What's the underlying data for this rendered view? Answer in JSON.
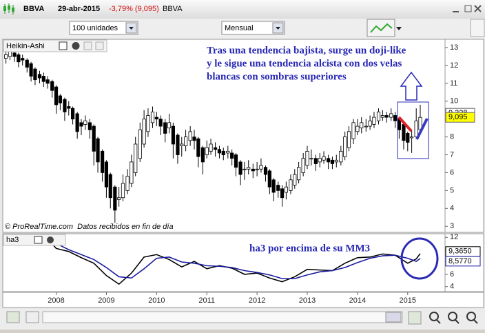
{
  "window": {
    "symbol": "BBVA",
    "date": "29-abr-2015",
    "change": "-3,79% (9,095)",
    "name": "BBVA",
    "quantity": "100 unidades",
    "period": "Mensual"
  },
  "chart_data": [
    {
      "type": "candlestick",
      "title": "Heikin-Ashi",
      "footer": [
        "© ProRealTime.com",
        "Datos recibidos en fin de día"
      ],
      "annotations": [
        "Tras una tendencia bajista, surge un doji-like",
        "y le sigue una tendencia alcista con dos velas",
        "blancas con sombras superiores"
      ],
      "xlim": [
        2006.95,
        2015.73
      ],
      "ylim": [
        2.7,
        13.27
      ],
      "yticks": [
        3,
        4,
        5,
        6,
        7,
        8,
        9,
        10,
        11,
        12,
        13
      ],
      "price_labels": [
        {
          "value": 9.328,
          "label": "9,328",
          "color": "#ffffff"
        },
        {
          "value": 9.095,
          "label": "9,095",
          "color": "#ffff00"
        }
      ],
      "x": [
        2007.0,
        2007.08,
        2007.17,
        2007.25,
        2007.33,
        2007.42,
        2007.5,
        2007.58,
        2007.67,
        2007.75,
        2007.83,
        2007.92,
        2008.0,
        2008.08,
        2008.17,
        2008.25,
        2008.33,
        2008.42,
        2008.5,
        2008.58,
        2008.67,
        2008.75,
        2008.83,
        2008.92,
        2009.0,
        2009.08,
        2009.17,
        2009.25,
        2009.33,
        2009.42,
        2009.5,
        2009.58,
        2009.67,
        2009.75,
        2009.83,
        2009.92,
        2010.0,
        2010.08,
        2010.17,
        2010.25,
        2010.33,
        2010.42,
        2010.5,
        2010.58,
        2010.67,
        2010.75,
        2010.83,
        2010.92,
        2011.0,
        2011.08,
        2011.17,
        2011.25,
        2011.33,
        2011.42,
        2011.5,
        2011.58,
        2011.67,
        2011.75,
        2011.83,
        2011.92,
        2012.0,
        2012.08,
        2012.17,
        2012.25,
        2012.33,
        2012.42,
        2012.5,
        2012.58,
        2012.67,
        2012.75,
        2012.83,
        2012.92,
        2013.0,
        2013.08,
        2013.17,
        2013.25,
        2013.33,
        2013.42,
        2013.5,
        2013.58,
        2013.67,
        2013.75,
        2013.83,
        2013.92,
        2014.0,
        2014.08,
        2014.17,
        2014.25,
        2014.33,
        2014.42,
        2014.5,
        2014.58,
        2014.67,
        2014.75,
        2014.83,
        2014.92,
        2015.0,
        2015.08,
        2015.17,
        2015.25
      ],
      "ohlc": [
        [
          12.4,
          12.9,
          12.1,
          12.6
        ],
        [
          12.5,
          13.1,
          12.3,
          12.9
        ],
        [
          12.7,
          12.9,
          12.2,
          12.5
        ],
        [
          12.6,
          12.7,
          11.9,
          12.2
        ],
        [
          12.4,
          12.6,
          12.0,
          12.3
        ],
        [
          12.3,
          12.4,
          11.6,
          11.9
        ],
        [
          12.1,
          12.2,
          11.1,
          11.4
        ],
        [
          11.8,
          11.9,
          10.9,
          11.2
        ],
        [
          11.5,
          11.7,
          11.0,
          11.3
        ],
        [
          11.4,
          11.6,
          10.8,
          11.1
        ],
        [
          11.2,
          11.4,
          10.7,
          11.0
        ],
        [
          11.1,
          11.2,
          10.2,
          10.6
        ],
        [
          10.8,
          10.9,
          9.3,
          9.8
        ],
        [
          10.3,
          10.4,
          9.5,
          9.9
        ],
        [
          10.1,
          10.2,
          8.9,
          9.4
        ],
        [
          9.7,
          10.0,
          9.2,
          9.6
        ],
        [
          9.6,
          9.7,
          8.7,
          9.0
        ],
        [
          9.3,
          9.4,
          7.9,
          8.3
        ],
        [
          8.8,
          9.0,
          8.1,
          8.6
        ],
        [
          8.7,
          9.2,
          8.4,
          8.9
        ],
        [
          8.8,
          9.0,
          7.9,
          8.4
        ],
        [
          8.6,
          8.7,
          6.4,
          7.2
        ],
        [
          7.9,
          8.0,
          6.0,
          6.6
        ],
        [
          7.2,
          7.3,
          5.5,
          6.0
        ],
        [
          6.6,
          6.7,
          4.6,
          5.2
        ],
        [
          5.9,
          6.0,
          4.0,
          4.6
        ],
        [
          5.2,
          5.3,
          3.2,
          3.9
        ],
        [
          4.5,
          5.2,
          4.1,
          4.6
        ],
        [
          4.6,
          5.9,
          4.4,
          5.4
        ],
        [
          5.0,
          6.2,
          4.8,
          5.8
        ],
        [
          5.4,
          7.0,
          5.2,
          6.6
        ],
        [
          6.0,
          8.0,
          5.8,
          7.6
        ],
        [
          6.8,
          8.8,
          6.6,
          8.4
        ],
        [
          7.6,
          9.5,
          7.4,
          9.0
        ],
        [
          8.3,
          9.6,
          8.0,
          9.2
        ],
        [
          8.8,
          9.7,
          8.5,
          9.4
        ],
        [
          9.1,
          9.4,
          8.6,
          9.0
        ],
        [
          9.0,
          9.2,
          8.1,
          8.6
        ],
        [
          8.8,
          9.0,
          7.7,
          8.2
        ],
        [
          8.5,
          9.3,
          8.2,
          8.8
        ],
        [
          8.6,
          8.8,
          6.8,
          7.6
        ],
        [
          8.1,
          8.2,
          6.5,
          7.0
        ],
        [
          7.5,
          8.0,
          6.9,
          7.6
        ],
        [
          7.5,
          8.4,
          7.2,
          8.0
        ],
        [
          7.8,
          8.6,
          7.5,
          8.3
        ],
        [
          8.0,
          8.4,
          7.3,
          7.8
        ],
        [
          7.9,
          8.0,
          6.3,
          6.9
        ],
        [
          7.4,
          7.5,
          5.9,
          6.6
        ],
        [
          7.0,
          7.8,
          6.8,
          7.4
        ],
        [
          7.2,
          7.9,
          7.0,
          7.6
        ],
        [
          7.4,
          7.7,
          6.9,
          7.3
        ],
        [
          7.3,
          7.5,
          6.8,
          7.1
        ],
        [
          7.2,
          7.4,
          6.7,
          7.0
        ],
        [
          7.1,
          7.5,
          6.8,
          7.2
        ],
        [
          7.1,
          7.3,
          6.4,
          6.8
        ],
        [
          7.0,
          7.1,
          5.8,
          6.3
        ],
        [
          6.6,
          6.7,
          5.3,
          5.9
        ],
        [
          6.2,
          6.6,
          5.6,
          6.2
        ],
        [
          6.2,
          6.7,
          5.9,
          6.3
        ],
        [
          6.2,
          6.5,
          5.7,
          6.1
        ],
        [
          6.2,
          6.6,
          5.8,
          6.2
        ],
        [
          6.2,
          6.8,
          6.0,
          6.4
        ],
        [
          6.3,
          6.4,
          5.5,
          5.9
        ],
        [
          6.1,
          6.2,
          4.8,
          5.2
        ],
        [
          5.6,
          5.7,
          4.4,
          4.9
        ],
        [
          5.3,
          5.5,
          4.6,
          5.0
        ],
        [
          5.1,
          5.3,
          4.1,
          4.6
        ],
        [
          4.9,
          5.5,
          4.5,
          5.2
        ],
        [
          5.0,
          5.9,
          4.8,
          5.6
        ],
        [
          5.3,
          6.2,
          5.1,
          5.9
        ],
        [
          5.6,
          6.6,
          5.4,
          6.3
        ],
        [
          6.0,
          7.1,
          5.8,
          6.8
        ],
        [
          6.4,
          7.5,
          6.2,
          7.2
        ],
        [
          6.8,
          7.3,
          6.4,
          6.8
        ],
        [
          6.8,
          7.0,
          6.1,
          6.5
        ],
        [
          6.6,
          7.1,
          6.3,
          6.8
        ],
        [
          6.7,
          7.2,
          6.5,
          6.9
        ],
        [
          6.8,
          7.0,
          6.2,
          6.6
        ],
        [
          6.7,
          6.9,
          6.2,
          6.5
        ],
        [
          6.6,
          7.0,
          6.3,
          6.7
        ],
        [
          6.6,
          7.5,
          6.4,
          7.2
        ],
        [
          6.9,
          8.3,
          6.7,
          8.0
        ],
        [
          7.4,
          8.6,
          7.2,
          8.3
        ],
        [
          7.9,
          9.0,
          7.6,
          8.8
        ],
        [
          8.3,
          9.0,
          8.1,
          8.6
        ],
        [
          8.5,
          9.1,
          8.2,
          8.8
        ],
        [
          8.6,
          9.0,
          8.3,
          8.6
        ],
        [
          8.6,
          9.2,
          8.4,
          8.9
        ],
        [
          8.7,
          9.4,
          8.5,
          9.1
        ],
        [
          8.9,
          9.6,
          8.7,
          9.4
        ],
        [
          9.1,
          9.5,
          8.9,
          9.2
        ],
        [
          9.2,
          9.4,
          8.8,
          9.1
        ],
        [
          9.1,
          9.6,
          8.9,
          9.3
        ],
        [
          9.2,
          9.4,
          8.5,
          8.9
        ],
        [
          9.0,
          9.1,
          7.9,
          8.4
        ],
        [
          8.7,
          8.8,
          7.3,
          7.8
        ],
        [
          8.2,
          8.3,
          7.2,
          7.7
        ],
        [
          7.95,
          8.4,
          7.1,
          8.0
        ],
        [
          8.0,
          9.6,
          7.9,
          8.9
        ],
        [
          8.4,
          9.8,
          8.2,
          9.095
        ]
      ]
    },
    {
      "type": "line",
      "title": "ha3",
      "annotation": "ha3 por encima de su MM3",
      "xlim": [
        2006.95,
        2015.73
      ],
      "xticks": [
        2008,
        2009,
        2010,
        2011,
        2012,
        2013,
        2014,
        2015
      ],
      "ylim": [
        3.3,
        12.7
      ],
      "yticks": [
        4,
        6,
        8,
        10,
        12
      ],
      "x": [
        2007.75,
        2008.0,
        2008.25,
        2008.5,
        2008.75,
        2009.0,
        2009.25,
        2009.5,
        2009.75,
        2010.0,
        2010.25,
        2010.5,
        2010.75,
        2011.0,
        2011.25,
        2011.5,
        2011.75,
        2012.0,
        2012.25,
        2012.5,
        2012.75,
        2013.0,
        2013.25,
        2013.5,
        2013.75,
        2014.0,
        2014.25,
        2014.5,
        2014.75,
        2015.0,
        2015.17,
        2015.25
      ],
      "series": [
        {
          "color": "#000000",
          "values": [
            12.5,
            10.2,
            9.7,
            8.7,
            7.8,
            5.8,
            4.4,
            6.2,
            8.8,
            9.2,
            8.4,
            7.2,
            8.1,
            6.9,
            7.4,
            7.0,
            6.0,
            6.2,
            5.4,
            4.8,
            5.6,
            6.8,
            6.7,
            6.6,
            7.8,
            8.7,
            8.8,
            9.3,
            9.1,
            7.8,
            8.5,
            9.365
          ],
          "value_label": "9,3650"
        },
        {
          "color": "#1a1aa0",
          "values": [
            12.0,
            11.0,
            10.0,
            9.2,
            8.4,
            7.1,
            5.6,
            5.4,
            6.9,
            8.6,
            8.8,
            8.0,
            7.8,
            7.4,
            7.3,
            7.1,
            6.6,
            6.3,
            5.9,
            5.3,
            5.3,
            5.9,
            6.4,
            6.6,
            7.1,
            7.9,
            8.6,
            9.0,
            9.1,
            8.6,
            8.1,
            8.577
          ],
          "value_label": "8,5770"
        }
      ]
    }
  ]
}
